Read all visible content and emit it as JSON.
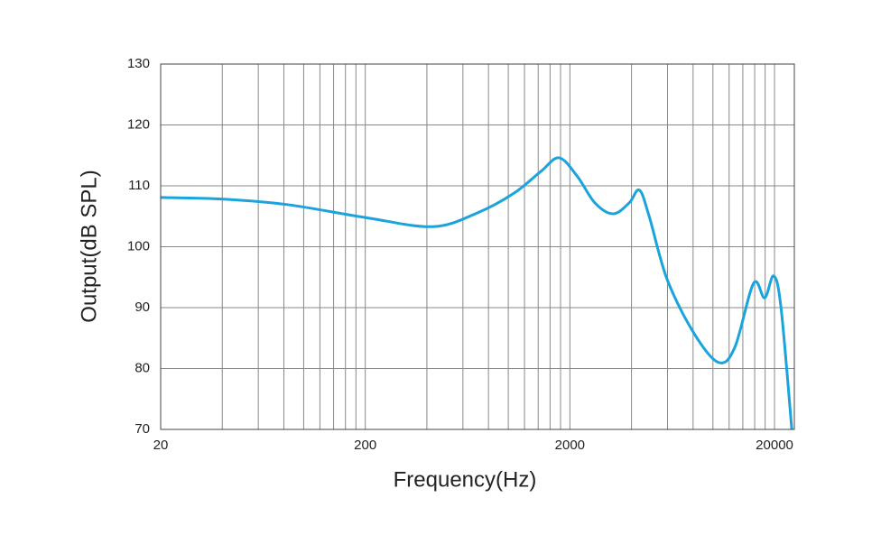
{
  "chart_data": {
    "type": "line",
    "xlabel": "Frequency(Hz)",
    "ylabel": "Output(dB SPL)",
    "x": [
      20,
      41.5,
      84,
      200,
      428,
      710,
      1066,
      1446,
      1770,
      2170,
      2650,
      3250,
      3900,
      4370,
      4880,
      5980,
      8110,
      10660,
      12800,
      15800,
      17900,
      19800,
      21500,
      24300
    ],
    "series": [
      {
        "name": "Output",
        "color": "#1aa3dc",
        "values": [
          108.1,
          107.8,
          106.9,
          104.8,
          103.3,
          105.6,
          108.8,
          112.4,
          114.6,
          111.6,
          107.2,
          105.4,
          107.2,
          109.3,
          105,
          94.6,
          85.7,
          81,
          83.5,
          94,
          91.6,
          95.2,
          90.1,
          70
        ]
      }
    ],
    "xscale": "log",
    "xlim": [
      20,
      25000
    ],
    "xticks": [
      20,
      200,
      2000,
      20000
    ],
    "xminor": [
      40,
      60,
      80,
      100,
      120,
      140,
      160,
      180,
      400,
      600,
      800,
      1000,
      1200,
      1400,
      1600,
      1800,
      4000,
      6000,
      8000,
      10000,
      12000,
      14000,
      16000,
      18000
    ],
    "ylim": [
      70,
      130
    ],
    "yticks": [
      70,
      80,
      90,
      100,
      110,
      120,
      130
    ],
    "grid": true
  }
}
